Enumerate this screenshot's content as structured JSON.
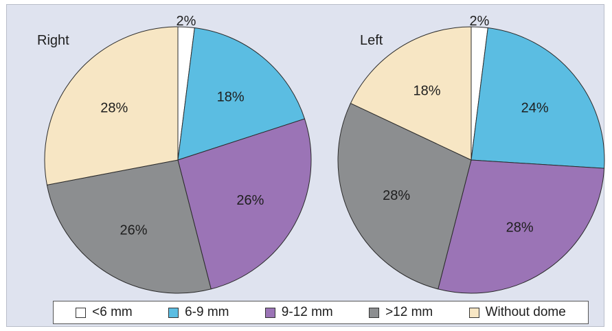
{
  "chart_data": [
    {
      "type": "pie",
      "title": "Right",
      "categories": [
        "<6 mm",
        "6-9 mm",
        "9-12 mm",
        ">12 mm",
        "Without dome"
      ],
      "values": [
        2,
        18,
        26,
        26,
        28
      ],
      "labels": [
        "2%",
        "18%",
        "26%",
        "26%",
        "28%"
      ],
      "colors": [
        "#ffffff",
        "#5bbde2",
        "#9b74b6",
        "#8c8e90",
        "#f7e6c4"
      ]
    },
    {
      "type": "pie",
      "title": "Left",
      "categories": [
        "<6 mm",
        "6-9 mm",
        "9-12 mm",
        ">12 mm",
        "Without dome"
      ],
      "values": [
        2,
        24,
        28,
        28,
        18
      ],
      "labels": [
        "2%",
        "24%",
        "28%",
        "28%",
        "18%"
      ],
      "colors": [
        "#ffffff",
        "#5bbde2",
        "#9b74b6",
        "#8c8e90",
        "#f7e6c4"
      ]
    }
  ],
  "legend": {
    "items": [
      {
        "label": "<6 mm",
        "color": "#ffffff"
      },
      {
        "label": "6-9 mm",
        "color": "#5bbde2"
      },
      {
        "label": "9-12 mm",
        "color": "#9b74b6"
      },
      {
        "label": ">12 mm",
        "color": "#8c8e90"
      },
      {
        "label": "Without dome",
        "color": "#f7e6c4"
      }
    ],
    "placement": "bottom"
  }
}
